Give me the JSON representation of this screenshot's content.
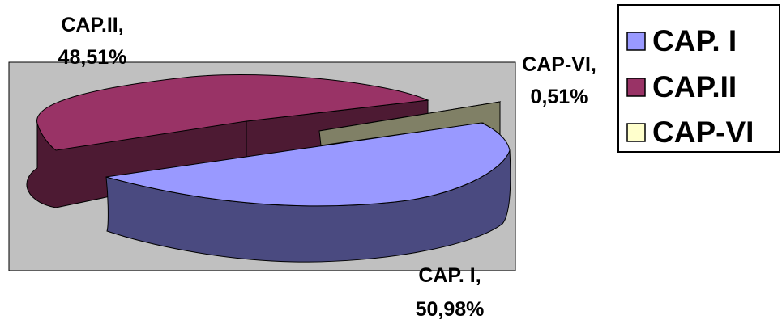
{
  "chart_data": {
    "type": "pie",
    "variant": "3d-exploded",
    "series": [
      {
        "name": "CAP. I",
        "value": 50.98,
        "label_name": "CAP. I,",
        "label_value": "50,98%",
        "color": "#9999ff",
        "side_color": "#4a4a80"
      },
      {
        "name": "CAP.II",
        "value": 48.51,
        "label_name": "CAP.II,",
        "label_value": "48,51%",
        "color": "#993366",
        "side_color": "#4d1a33"
      },
      {
        "name": "CAP-VI",
        "value": 0.51,
        "label_name": "CAP-VI,",
        "label_value": "0,51%",
        "color": "#ffffcc",
        "side_color": "#808066"
      }
    ],
    "legend": {
      "position": "top-right",
      "items": [
        "CAP. I",
        "CAP.II",
        "CAP-VI"
      ]
    },
    "plot_area_color": "#c0c0c0"
  }
}
